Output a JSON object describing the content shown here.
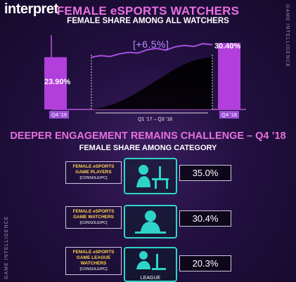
{
  "brand": {
    "logo_text": "interpret",
    "side_label": "GAME INTELLIGENCE"
  },
  "section1": {
    "title": "FEMALE eSPORTS WATCHERS",
    "subtitle": "FEMALE SHARE AMONG ALL WATCHERS",
    "growth_label": "[+6.5%]"
  },
  "section2": {
    "title": "DEEPER ENGAGEMENT REMAINS CHALLENGE – Q4 ’18",
    "subtitle": "FEMALE SHARE AMONG CATEGORY"
  },
  "chart_data": [
    {
      "type": "bar",
      "categories": [
        "Q4 ’16",
        "Q4 ’18"
      ],
      "values": [
        23.9,
        30.4
      ],
      "value_labels": [
        "23.90%",
        "30.40%"
      ],
      "range_label": "Q1 ’17 – Q3 ’18",
      "trend_line": [
        23.9,
        24.6,
        24.2,
        25.4,
        26.1,
        25.8,
        27.3,
        27.9,
        27.1,
        28.6,
        29.3,
        28.8,
        30.1,
        29.6
      ],
      "annotation": "[+6.5%]",
      "ylim": [
        0,
        34
      ],
      "colors": {
        "bar": "#b23fdc",
        "line": "#a94fe0",
        "area": "#000000"
      }
    },
    {
      "type": "table",
      "rows": [
        {
          "category_lines": [
            "FEMALE eSPORTS",
            "GAME PLAYERS"
          ],
          "platform": "[CONSOLE/PC]",
          "value": "35.0%",
          "icon": "gamer-at-desk-icon"
        },
        {
          "category_lines": [
            "FEMALE eSPORTS",
            "GAME WATCHERS"
          ],
          "platform": "[CONSOLE/PC]",
          "value": "30.4%",
          "icon": "viewer-at-monitor-icon"
        },
        {
          "category_lines": [
            "FEMALE eSPORTS",
            "GAME LEAGUE",
            "WATCHERS"
          ],
          "platform": "[CONSOLE/PC]",
          "value": "20.3%",
          "icon": "league-viewer-icon",
          "icon_label": "LEAGUE"
        }
      ]
    }
  ]
}
